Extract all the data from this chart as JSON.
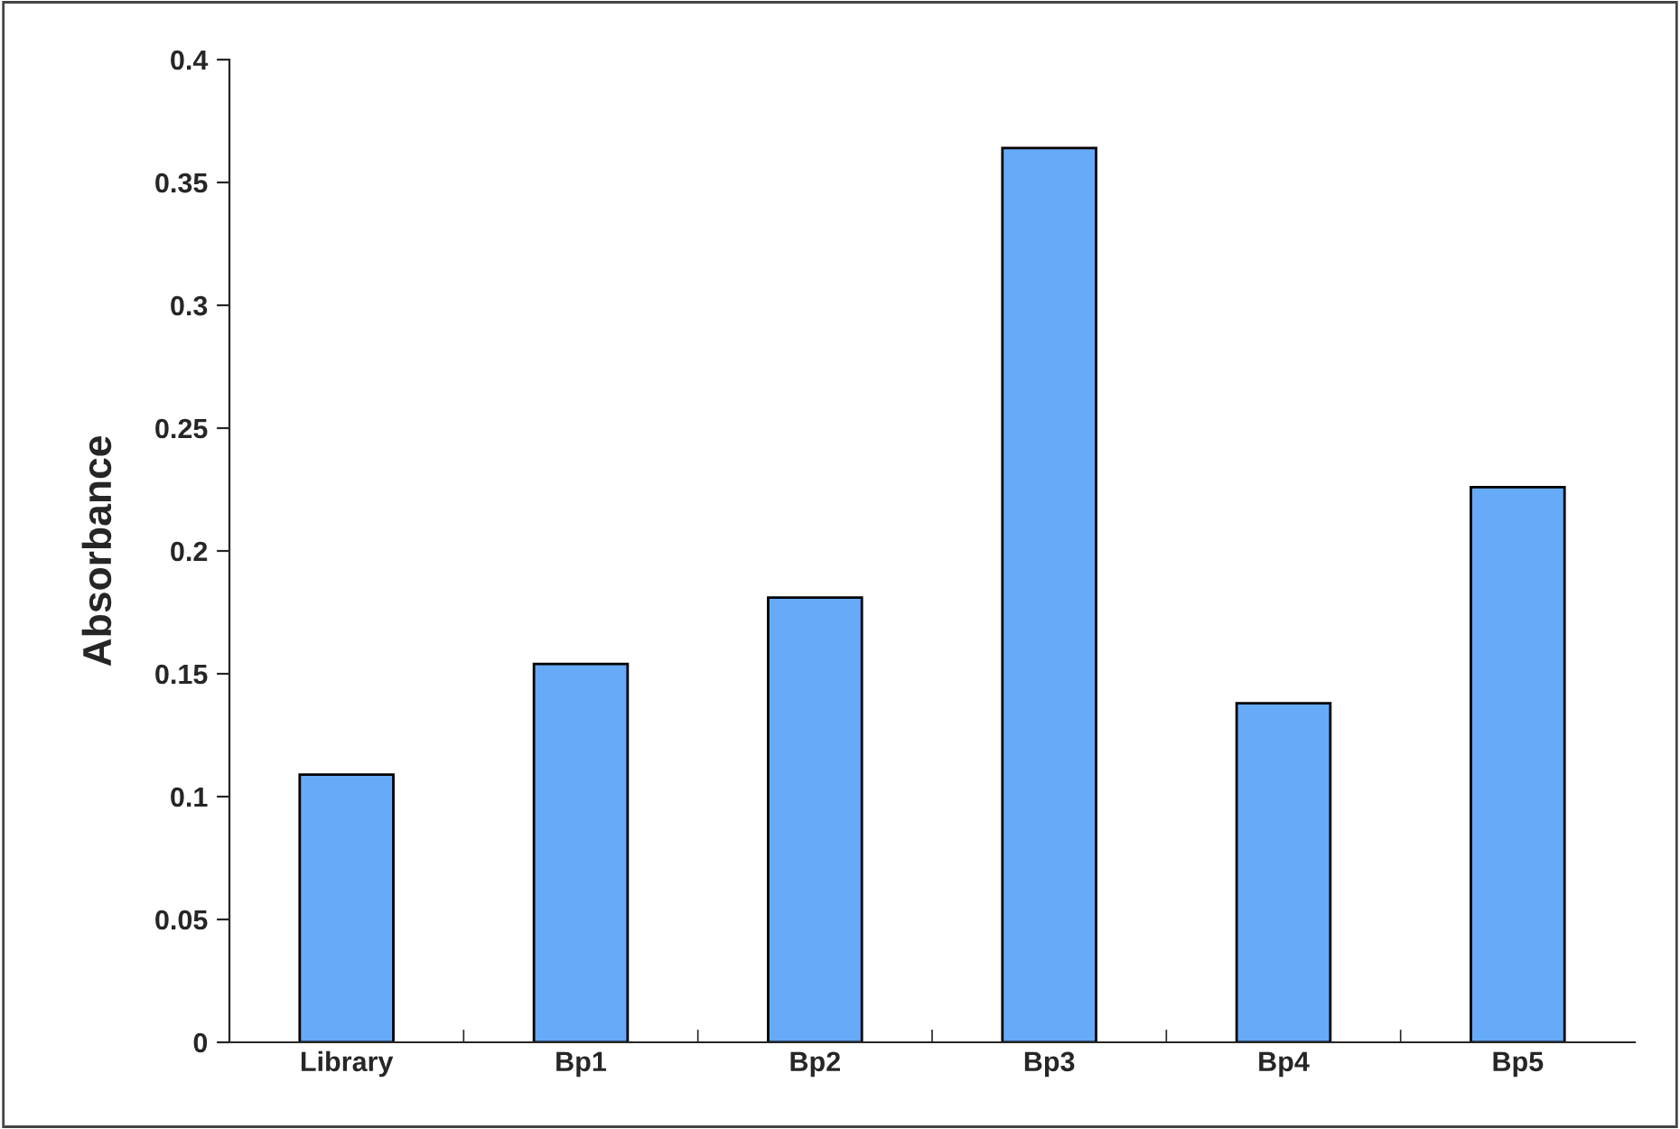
{
  "chart_data": {
    "type": "bar",
    "ylabel": "Absorbance",
    "categories": [
      "Library",
      "Bp1",
      "Bp2",
      "Bp3",
      "Bp4",
      "Bp5"
    ],
    "values": [
      0.109,
      0.154,
      0.181,
      0.364,
      0.138,
      0.226
    ],
    "color": "#66aaf8",
    "ylim": [
      0,
      0.4
    ],
    "yticks": [
      0,
      0.05,
      0.1,
      0.15,
      0.2,
      0.25,
      0.3,
      0.35,
      0.4
    ],
    "grid": false
  }
}
